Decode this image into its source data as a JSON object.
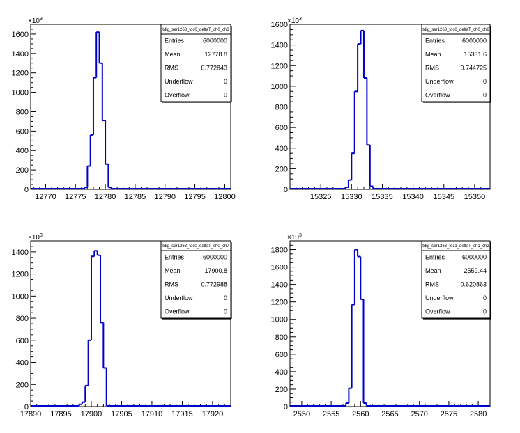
{
  "chart_data": [
    {
      "type": "bar",
      "title": "tdig_ser1263_tdc0_deltaT_ch0_ch3",
      "y_exponent": "10",
      "y_exponent_power": "3",
      "x_ticks": [
        "12770",
        "12775",
        "12780",
        "12785",
        "12790",
        "12795",
        "12800"
      ],
      "y_ticks": [
        "0",
        "200",
        "400",
        "600",
        "800",
        "1000",
        "1200",
        "1400",
        "1600"
      ],
      "xlim": [
        12767.5,
        12801.0
      ],
      "ylim": [
        0,
        1700
      ],
      "bin_width": 0.5,
      "bins_x": [
        12776.75,
        12777.25,
        12777.75,
        12778.25,
        12778.75,
        12779.25,
        12779.75,
        12780.25,
        12780.75
      ],
      "values": [
        20,
        240,
        560,
        1150,
        1620,
        1300,
        710,
        260,
        20
      ],
      "stats": {
        "labels": [
          "Entries",
          "Mean",
          "RMS",
          "Underflow",
          "Overflow"
        ],
        "values": [
          "6000000",
          "12778.8",
          "0.772843",
          "0",
          "0"
        ]
      }
    },
    {
      "type": "bar",
      "title": "tdig_ser1263_tdc0_deltaT_ch0_ch6",
      "y_exponent": "10",
      "y_exponent_power": "3",
      "x_ticks": [
        "15325",
        "15330",
        "15335",
        "15340",
        "15345",
        "15350"
      ],
      "y_ticks": [
        "0",
        "200",
        "400",
        "600",
        "800",
        "1000",
        "1200",
        "1400",
        "1600"
      ],
      "xlim": [
        15320.0,
        15352.5
      ],
      "ylim": [
        0,
        1600
      ],
      "bin_width": 0.5,
      "bins_x": [
        15329.25,
        15329.75,
        15330.25,
        15330.75,
        15331.25,
        15331.75,
        15332.25,
        15332.75,
        15333.25
      ],
      "values": [
        20,
        90,
        350,
        950,
        1410,
        1540,
        1080,
        430,
        30
      ],
      "stats": {
        "labels": [
          "Entries",
          "Mean",
          "RMS",
          "Underflow",
          "Overflow"
        ],
        "values": [
          "6000000",
          "15331.6",
          "0.744725",
          "0",
          "0"
        ]
      }
    },
    {
      "type": "bar",
      "title": "tdig_ser1263_tdc0_deltaT_ch0_ch7",
      "y_exponent": "10",
      "y_exponent_power": "3",
      "x_ticks": [
        "17890",
        "17895",
        "17900",
        "17905",
        "17910",
        "17915",
        "17920"
      ],
      "y_ticks": [
        "0",
        "200",
        "400",
        "600",
        "800",
        "1000",
        "1200",
        "1400"
      ],
      "xlim": [
        17890.0,
        17923.0
      ],
      "ylim": [
        0,
        1500
      ],
      "bin_width": 0.5,
      "bins_x": [
        17898.25,
        17898.75,
        17899.25,
        17899.75,
        17900.25,
        17900.75,
        17901.25,
        17901.75,
        17902.25
      ],
      "values": [
        20,
        40,
        190,
        600,
        1360,
        1410,
        1370,
        760,
        350
      ],
      "stats": {
        "labels": [
          "Entries",
          "Mean",
          "RMS",
          "Underflow",
          "Overflow"
        ],
        "values": [
          "6000000",
          "17900.8",
          "0.772988",
          "0",
          "0"
        ]
      }
    },
    {
      "type": "bar",
      "title": "tdig_ser1263_tdc1_deltaT_ch1_ch2",
      "y_exponent": "10",
      "y_exponent_power": "3",
      "x_ticks": [
        "2550",
        "2555",
        "2560",
        "2565",
        "2570",
        "2575",
        "2580"
      ],
      "y_ticks": [
        "0",
        "200",
        "400",
        "600",
        "800",
        "1000",
        "1200",
        "1400",
        "1600",
        "1800"
      ],
      "xlim": [
        2548.0,
        2582.0
      ],
      "ylim": [
        0,
        1900
      ],
      "bin_width": 0.5,
      "bins_x": [
        2557.75,
        2558.25,
        2558.75,
        2559.25,
        2559.75,
        2560.25,
        2560.75
      ],
      "values": [
        40,
        210,
        1170,
        1800,
        1720,
        1230,
        40
      ],
      "stats": {
        "labels": [
          "Entries",
          "Mean",
          "RMS",
          "Underflow",
          "Overflow"
        ],
        "values": [
          "6000000",
          "2559.44",
          "0.620863",
          "0",
          "0"
        ]
      }
    }
  ]
}
